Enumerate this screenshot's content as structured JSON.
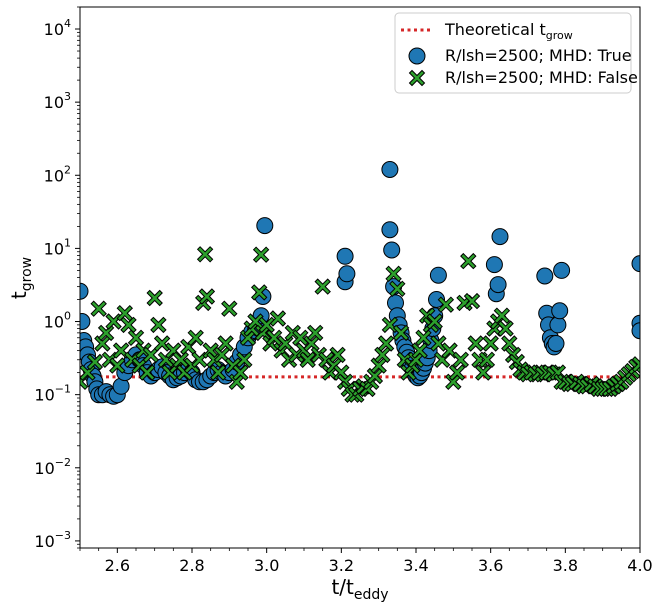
{
  "chart_data": {
    "type": "scatter",
    "xlabel": "t/t",
    "xlabel_sub": "eddy",
    "ylabel": "t",
    "ylabel_sub": "grow",
    "xlim": [
      2.5,
      4.0
    ],
    "ylim": [
      0.0008,
      20000
    ],
    "yscale": "log",
    "grid": false,
    "legend_position": "top-right",
    "x_ticks": [
      "2.6",
      "2.8",
      "3.0",
      "3.2",
      "3.4",
      "3.6",
      "3.8",
      "4.0"
    ],
    "x_tick_values": [
      2.6,
      2.8,
      3.0,
      3.2,
      3.4,
      3.6,
      3.8,
      4.0
    ],
    "y_ticks": [
      {
        "value": 0.001,
        "base": "10",
        "exp": "−3"
      },
      {
        "value": 0.01,
        "base": "10",
        "exp": "−2"
      },
      {
        "value": 0.1,
        "base": "10",
        "exp": "−1"
      },
      {
        "value": 1,
        "base": "10",
        "exp": "0"
      },
      {
        "value": 10,
        "base": "10",
        "exp": "1"
      },
      {
        "value": 100,
        "base": "10",
        "exp": "2"
      },
      {
        "value": 1000,
        "base": "10",
        "exp": "3"
      },
      {
        "value": 10000,
        "base": "10",
        "exp": "4"
      }
    ],
    "reference_line": {
      "name": "Theoretical t",
      "name_sub": "grow",
      "y": 0.175,
      "color": "#d62728",
      "style": "dotted"
    },
    "series": [
      {
        "name": "R/lsh=2500; MHD: True",
        "marker": "circle",
        "color": "#1f77b4",
        "points": [
          [
            2.5,
            2.6
          ],
          [
            2.505,
            1.0
          ],
          [
            2.51,
            0.55
          ],
          [
            2.515,
            0.45
          ],
          [
            2.52,
            0.35
          ],
          [
            2.525,
            0.28
          ],
          [
            2.53,
            0.22
          ],
          [
            2.535,
            0.18
          ],
          [
            2.54,
            0.15
          ],
          [
            2.545,
            0.12
          ],
          [
            2.55,
            0.1
          ],
          [
            2.56,
            0.1
          ],
          [
            2.57,
            0.11
          ],
          [
            2.58,
            0.1
          ],
          [
            2.59,
            0.095
          ],
          [
            2.6,
            0.1
          ],
          [
            2.61,
            0.13
          ],
          [
            2.62,
            0.2
          ],
          [
            2.63,
            0.25
          ],
          [
            2.64,
            0.3
          ],
          [
            2.65,
            0.35
          ],
          [
            2.66,
            0.3
          ],
          [
            2.67,
            0.25
          ],
          [
            2.68,
            0.2
          ],
          [
            2.69,
            0.18
          ],
          [
            2.7,
            0.2
          ],
          [
            2.71,
            0.22
          ],
          [
            2.72,
            0.24
          ],
          [
            2.73,
            0.2
          ],
          [
            2.74,
            0.18
          ],
          [
            2.75,
            0.16
          ],
          [
            2.76,
            0.17
          ],
          [
            2.77,
            0.18
          ],
          [
            2.78,
            0.2
          ],
          [
            2.79,
            0.22
          ],
          [
            2.8,
            0.2
          ],
          [
            2.81,
            0.16
          ],
          [
            2.82,
            0.15
          ],
          [
            2.83,
            0.15
          ],
          [
            2.84,
            0.16
          ],
          [
            2.85,
            0.18
          ],
          [
            2.86,
            0.2
          ],
          [
            2.87,
            0.22
          ],
          [
            2.88,
            0.2
          ],
          [
            2.89,
            0.18
          ],
          [
            2.9,
            0.2
          ],
          [
            2.91,
            0.22
          ],
          [
            2.92,
            0.28
          ],
          [
            2.93,
            0.35
          ],
          [
            2.94,
            0.45
          ],
          [
            2.95,
            0.6
          ],
          [
            2.96,
            0.72
          ],
          [
            2.97,
            0.75
          ],
          [
            2.98,
            0.8
          ],
          [
            2.985,
            1.2
          ],
          [
            2.99,
            2.2
          ],
          [
            2.995,
            20.5
          ],
          [
            3.21,
            3.5
          ],
          [
            3.215,
            4.5
          ],
          [
            3.21,
            7.8
          ],
          [
            3.33,
            120
          ],
          [
            3.33,
            18
          ],
          [
            3.335,
            9.5
          ],
          [
            3.34,
            3.0
          ],
          [
            3.345,
            1.8
          ],
          [
            3.35,
            1.2
          ],
          [
            3.355,
            0.9
          ],
          [
            3.36,
            0.7
          ],
          [
            3.365,
            0.55
          ],
          [
            3.37,
            0.45
          ],
          [
            3.375,
            0.38
          ],
          [
            3.38,
            0.32
          ],
          [
            3.385,
            0.27
          ],
          [
            3.39,
            0.23
          ],
          [
            3.395,
            0.2
          ],
          [
            3.4,
            0.18
          ],
          [
            3.405,
            0.17
          ],
          [
            3.41,
            0.18
          ],
          [
            3.415,
            0.2
          ],
          [
            3.42,
            0.23
          ],
          [
            3.425,
            0.27
          ],
          [
            3.43,
            0.32
          ],
          [
            3.435,
            0.4
          ],
          [
            3.44,
            0.55
          ],
          [
            3.445,
            0.8
          ],
          [
            3.45,
            1.2
          ],
          [
            3.455,
            2.0
          ],
          [
            3.46,
            4.3
          ],
          [
            3.61,
            6.0
          ],
          [
            3.615,
            2.4
          ],
          [
            3.62,
            3.2
          ],
          [
            3.625,
            14.5
          ],
          [
            3.745,
            4.2
          ],
          [
            3.75,
            1.3
          ],
          [
            3.755,
            0.9
          ],
          [
            3.76,
            0.6
          ],
          [
            3.765,
            0.5
          ],
          [
            3.77,
            0.45
          ],
          [
            3.775,
            0.5
          ],
          [
            3.78,
            0.9
          ],
          [
            3.785,
            1.4
          ],
          [
            3.79,
            5.0
          ],
          [
            4.0,
            6.2
          ],
          [
            4.0,
            0.95
          ],
          [
            4.0,
            0.75
          ]
        ]
      },
      {
        "name": "R/lsh=2500; MHD: False",
        "marker": "x",
        "color": "#2ca02c",
        "points": [
          [
            2.5,
            0.15
          ],
          [
            2.52,
            0.2
          ],
          [
            2.54,
            0.28
          ],
          [
            2.55,
            1.5
          ],
          [
            2.56,
            0.5
          ],
          [
            2.57,
            0.7
          ],
          [
            2.58,
            0.3
          ],
          [
            2.59,
            1.0
          ],
          [
            2.6,
            0.25
          ],
          [
            2.61,
            0.4
          ],
          [
            2.62,
            1.3
          ],
          [
            2.63,
            0.9
          ],
          [
            2.64,
            0.3
          ],
          [
            2.65,
            0.6
          ],
          [
            2.66,
            0.25
          ],
          [
            2.67,
            0.4
          ],
          [
            2.68,
            0.2
          ],
          [
            2.69,
            0.35
          ],
          [
            2.7,
            2.1
          ],
          [
            2.71,
            0.9
          ],
          [
            2.72,
            0.5
          ],
          [
            2.73,
            0.3
          ],
          [
            2.74,
            0.2
          ],
          [
            2.75,
            0.4
          ],
          [
            2.76,
            0.25
          ],
          [
            2.77,
            0.3
          ],
          [
            2.78,
            0.2
          ],
          [
            2.79,
            0.45
          ],
          [
            2.8,
            0.25
          ],
          [
            2.81,
            0.6
          ],
          [
            2.82,
            0.3
          ],
          [
            2.83,
            1.8
          ],
          [
            2.835,
            8.3
          ],
          [
            2.84,
            2.2
          ],
          [
            2.85,
            0.4
          ],
          [
            2.86,
            0.3
          ],
          [
            2.87,
            0.2
          ],
          [
            2.88,
            0.35
          ],
          [
            2.89,
            0.5
          ],
          [
            2.9,
            1.5
          ],
          [
            2.91,
            0.25
          ],
          [
            2.92,
            0.15
          ],
          [
            2.93,
            0.2
          ],
          [
            2.94,
            0.3
          ],
          [
            2.95,
            0.6
          ],
          [
            2.96,
            0.8
          ],
          [
            2.97,
            1.0
          ],
          [
            2.98,
            2.5
          ],
          [
            2.985,
            8.2
          ],
          [
            2.99,
            0.7
          ],
          [
            3.0,
            0.9
          ],
          [
            3.01,
            0.5
          ],
          [
            3.02,
            0.6
          ],
          [
            3.03,
            1.1
          ],
          [
            3.04,
            0.4
          ],
          [
            3.05,
            0.5
          ],
          [
            3.06,
            0.3
          ],
          [
            3.07,
            0.7
          ],
          [
            3.08,
            0.35
          ],
          [
            3.09,
            0.6
          ],
          [
            3.1,
            0.4
          ],
          [
            3.11,
            0.3
          ],
          [
            3.12,
            0.5
          ],
          [
            3.13,
            0.7
          ],
          [
            3.14,
            0.35
          ],
          [
            3.15,
            3.0
          ],
          [
            3.16,
            0.3
          ],
          [
            3.17,
            0.2
          ],
          [
            3.18,
            0.25
          ],
          [
            3.19,
            0.35
          ],
          [
            3.2,
            0.2
          ],
          [
            3.21,
            0.15
          ],
          [
            3.22,
            0.12
          ],
          [
            3.23,
            0.1
          ],
          [
            3.24,
            0.1
          ],
          [
            3.25,
            0.12
          ],
          [
            3.26,
            0.13
          ],
          [
            3.27,
            0.12
          ],
          [
            3.28,
            0.15
          ],
          [
            3.29,
            0.18
          ],
          [
            3.3,
            0.25
          ],
          [
            3.31,
            0.35
          ],
          [
            3.32,
            0.5
          ],
          [
            3.33,
            0.9
          ],
          [
            3.34,
            4.5
          ],
          [
            3.35,
            2.8
          ],
          [
            3.36,
            0.7
          ],
          [
            3.37,
            0.3
          ],
          [
            3.38,
            0.2
          ],
          [
            3.39,
            0.25
          ],
          [
            3.4,
            0.3
          ],
          [
            3.41,
            0.4
          ],
          [
            3.42,
            0.6
          ],
          [
            3.43,
            1.2
          ],
          [
            3.44,
            0.9
          ],
          [
            3.45,
            1.0
          ],
          [
            3.46,
            0.5
          ],
          [
            3.47,
            0.3
          ],
          [
            3.48,
            1.7
          ],
          [
            3.49,
            0.4
          ],
          [
            3.5,
            0.15
          ],
          [
            3.51,
            0.2
          ],
          [
            3.52,
            0.3
          ],
          [
            3.53,
            1.8
          ],
          [
            3.54,
            6.7
          ],
          [
            3.55,
            1.9
          ],
          [
            3.56,
            0.5
          ],
          [
            3.57,
            0.3
          ],
          [
            3.58,
            0.2
          ],
          [
            3.59,
            0.3
          ],
          [
            3.6,
            0.5
          ],
          [
            3.61,
            0.8
          ],
          [
            3.62,
            1.0
          ],
          [
            3.63,
            1.2
          ],
          [
            3.64,
            0.8
          ],
          [
            3.65,
            0.5
          ],
          [
            3.66,
            0.35
          ],
          [
            3.67,
            0.28
          ],
          [
            3.68,
            0.22
          ],
          [
            3.69,
            0.2
          ],
          [
            3.7,
            0.19
          ],
          [
            3.71,
            0.2
          ],
          [
            3.72,
            0.19
          ],
          [
            3.73,
            0.2
          ],
          [
            3.74,
            0.19
          ],
          [
            3.75,
            0.2
          ],
          [
            3.76,
            0.2
          ],
          [
            3.77,
            0.19
          ],
          [
            3.78,
            0.2
          ],
          [
            3.79,
            0.15
          ],
          [
            3.8,
            0.15
          ],
          [
            3.81,
            0.14
          ],
          [
            3.82,
            0.14
          ],
          [
            3.83,
            0.15
          ],
          [
            3.84,
            0.14
          ],
          [
            3.85,
            0.13
          ],
          [
            3.86,
            0.13
          ],
          [
            3.87,
            0.14
          ],
          [
            3.88,
            0.13
          ],
          [
            3.89,
            0.12
          ],
          [
            3.9,
            0.12
          ],
          [
            3.91,
            0.12
          ],
          [
            3.92,
            0.12
          ],
          [
            3.93,
            0.13
          ],
          [
            3.94,
            0.14
          ],
          [
            3.95,
            0.15
          ],
          [
            3.96,
            0.17
          ],
          [
            3.97,
            0.19
          ],
          [
            3.98,
            0.21
          ],
          [
            3.99,
            0.24
          ],
          [
            4.0,
            0.26
          ]
        ]
      }
    ]
  }
}
